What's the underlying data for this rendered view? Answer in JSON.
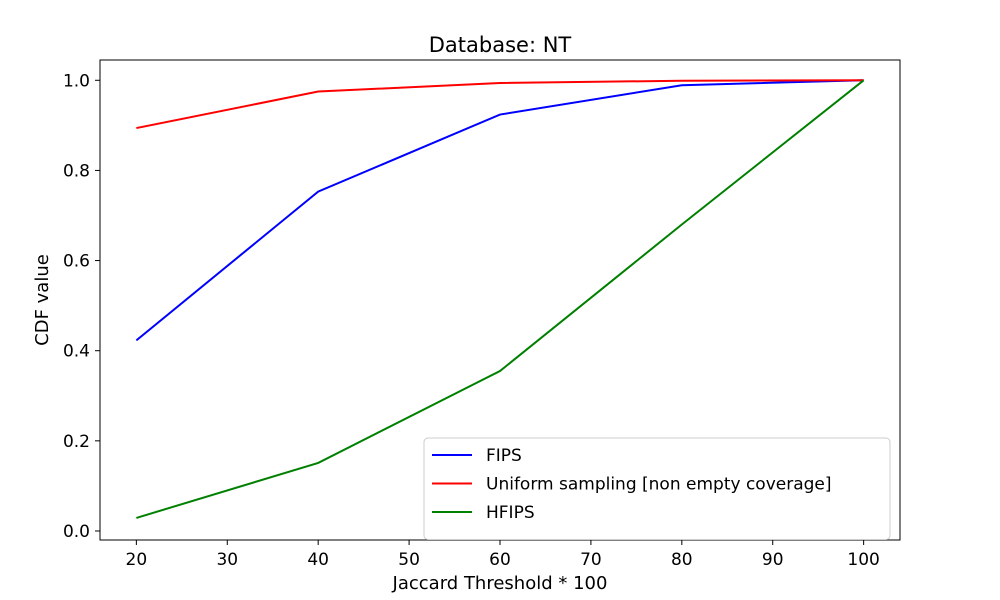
{
  "chart_data": {
    "type": "line",
    "title": "Database: NT",
    "xlabel": "Jaccard Threshold * 100",
    "ylabel": "CDF value",
    "x": [
      20,
      40,
      60,
      80,
      100
    ],
    "xlim": [
      16,
      104
    ],
    "ylim": [
      -0.02,
      1.045
    ],
    "xticks": [
      20,
      30,
      40,
      50,
      60,
      70,
      80,
      90,
      100
    ],
    "yticks": [
      0.0,
      0.2,
      0.4,
      0.6,
      0.8,
      1.0
    ],
    "grid": false,
    "legend_position": "lower-right",
    "series": [
      {
        "name": "FIPS",
        "color": "#0000ff",
        "values": [
          0.423,
          0.753,
          0.924,
          0.989,
          1.0
        ]
      },
      {
        "name": "Uniform sampling [non empty coverage]",
        "color": "#ff0000",
        "values": [
          0.894,
          0.975,
          0.994,
          0.999,
          1.0
        ]
      },
      {
        "name": "HFIPS",
        "color": "#008000",
        "values": [
          0.029,
          0.151,
          0.355,
          0.68,
          1.0
        ]
      }
    ]
  }
}
